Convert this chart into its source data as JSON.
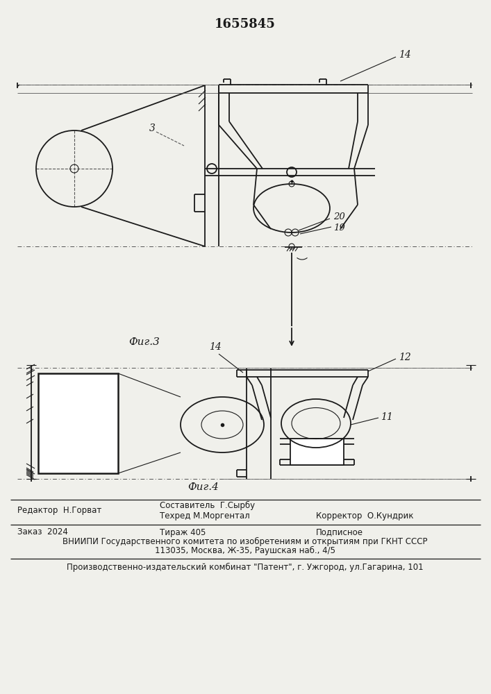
{
  "patent_number": "1655845",
  "fig3_label": "Фиг.3",
  "fig4_label": "Фиг.4",
  "editor_line": "Редактор  Н.Горват",
  "composer_line1": "Составитель  Г.Сырбу",
  "composer_line2": "Техред М.Моргентал",
  "corrector_line": "Корректор  О.Кундрик",
  "order_line": "Заказ  2024",
  "edition_line": "Тираж 405",
  "subscription_line": "Подписное",
  "vniipи_line1": "ВНИИПИ Государственного комитета по изобретениям и открытиям при ГКНТ СССР",
  "vniipи_line2": "113035, Москва, Ж-35, Раушская наб., 4/5",
  "publisher_line": "Производственно-издательский комбинат \"Патент\", г. Ужгород, ул.Гагарина, 101",
  "bg_color": "#f0f0eb",
  "line_color": "#1a1a1a",
  "label3": "3",
  "label14_fig3": "14",
  "label20": "20",
  "label19": "19",
  "label14_fig4": "14",
  "label12": "12",
  "label11": "11"
}
